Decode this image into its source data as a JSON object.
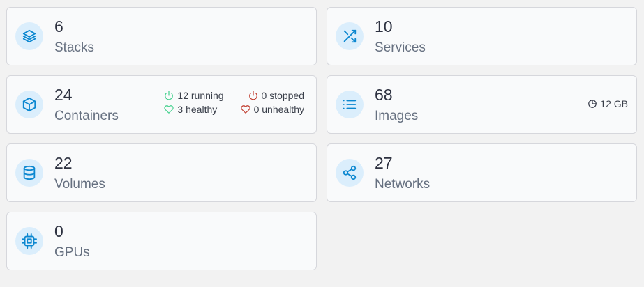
{
  "colors": {
    "accent": "#0b87d0",
    "icon_bg": "#dbeefc",
    "running": "#3fcf8a",
    "stopped": "#c0392b"
  },
  "cards": [
    {
      "count": "6",
      "label": "Stacks",
      "icon": "layers-icon"
    },
    {
      "count": "10",
      "label": "Services",
      "icon": "shuffle-icon"
    },
    {
      "count": "24",
      "label": "Containers",
      "icon": "box-icon",
      "stats": {
        "running": "12 running",
        "stopped": "0 stopped",
        "healthy": "3 healthy",
        "unhealthy": "0 unhealthy"
      }
    },
    {
      "count": "68",
      "label": "Images",
      "icon": "list-icon",
      "size": "12 GB"
    },
    {
      "count": "22",
      "label": "Volumes",
      "icon": "database-icon"
    },
    {
      "count": "27",
      "label": "Networks",
      "icon": "share-icon"
    },
    {
      "count": "0",
      "label": "GPUs",
      "icon": "cpu-icon"
    }
  ]
}
